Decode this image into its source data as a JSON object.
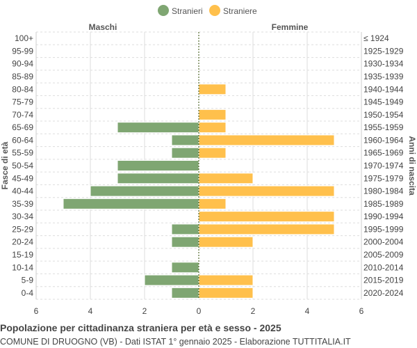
{
  "chart_data": {
    "type": "bar",
    "orientation": "horizontal-pyramid",
    "title": "Popolazione per cittadinanza straniera per età e sesso - 2025",
    "subtitle": "COMUNE DI DRUOGNO (VB) - Dati ISTAT 1° gennaio 2025 - Elaborazione TUTTITALIA.IT",
    "left_header": "Maschi",
    "right_header": "Femmine",
    "ylabel_left": "Fasce di età",
    "ylabel_right": "Anni di nascita",
    "xlim": [
      -6,
      6
    ],
    "x_ticks": [
      "6",
      "4",
      "2",
      "0",
      "2",
      "4",
      "6"
    ],
    "grid": true,
    "legend_position": "top",
    "categories": [
      "100+",
      "95-99",
      "90-94",
      "85-89",
      "80-84",
      "75-79",
      "70-74",
      "65-69",
      "60-64",
      "55-59",
      "50-54",
      "45-49",
      "40-44",
      "35-39",
      "30-34",
      "25-29",
      "20-24",
      "15-19",
      "10-14",
      "5-9",
      "0-4"
    ],
    "birth_years": [
      "≤ 1924",
      "1925-1929",
      "1930-1934",
      "1935-1939",
      "1940-1944",
      "1945-1949",
      "1950-1954",
      "1955-1959",
      "1960-1964",
      "1965-1969",
      "1970-1974",
      "1975-1979",
      "1980-1984",
      "1985-1989",
      "1990-1994",
      "1995-1999",
      "2000-2004",
      "2005-2009",
      "2010-2014",
      "2015-2019",
      "2020-2024"
    ],
    "series": [
      {
        "name": "Stranieri",
        "color": "#7fa672",
        "side": "left",
        "values": [
          0,
          0,
          0,
          0,
          0,
          0,
          0,
          3,
          1,
          1,
          3,
          3,
          4,
          5,
          0,
          1,
          1,
          0,
          1,
          2,
          1
        ]
      },
      {
        "name": "Straniere",
        "color": "#ffc04c",
        "side": "right",
        "values": [
          0,
          0,
          0,
          0,
          1,
          0,
          1,
          1,
          5,
          1,
          0,
          2,
          5,
          1,
          5,
          5,
          2,
          0,
          0,
          2,
          2
        ]
      }
    ]
  }
}
